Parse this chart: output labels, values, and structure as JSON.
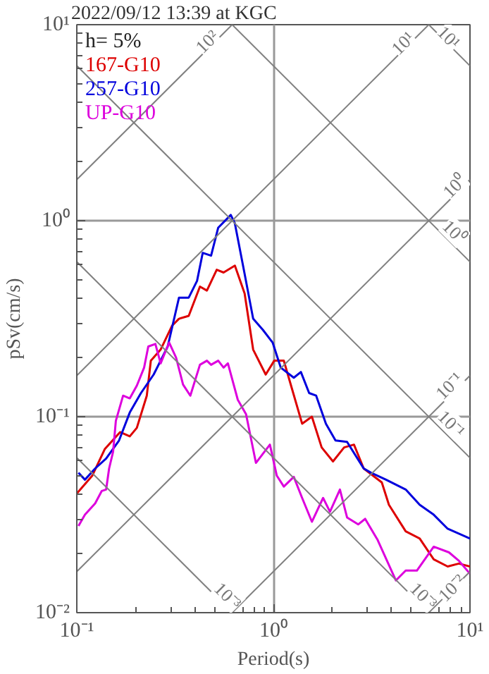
{
  "chart_data": {
    "type": "line",
    "title": "2022/09/12 13:39 at KGC",
    "xlabel": "Period(s)",
    "ylabel": "pSv(cm/s)",
    "log": "xy",
    "grid": true,
    "legend": "top left",
    "xlim": [
      0.1,
      10
    ],
    "ylim": [
      0.01,
      10
    ],
    "xticks": [
      {
        "value": 0.1,
        "label": "10⁻¹"
      },
      {
        "value": 1,
        "label": "10⁰"
      },
      {
        "value": 10,
        "label": "10¹"
      }
    ],
    "yticks": [
      {
        "value": 0.01,
        "label": "10⁻²"
      },
      {
        "value": 0.1,
        "label": "10⁻¹"
      },
      {
        "value": 1,
        "label": "10⁰"
      },
      {
        "value": 10,
        "label": "10¹"
      }
    ],
    "annotations": [
      "h= 5%",
      {
        "text": "10²",
        "x": 0.459,
        "y": 8.21
      },
      {
        "text": "10¹",
        "x": 4.55,
        "y": 8.07
      },
      {
        "text": "10¹",
        "x": 7.82,
        "y": 8.63
      },
      {
        "text": "10⁰",
        "x": 8.36,
        "y": 1.51
      },
      {
        "text": "10⁰",
        "x": 8.36,
        "y": 0.877
      },
      {
        "text": "10⁻¹",
        "x": 7.82,
        "y": 0.144
      },
      {
        "text": "10⁻¹",
        "x": 8.07,
        "y": 0.0921
      },
      {
        "text": "10⁻³",
        "x": 0.587,
        "y": 0.0122
      },
      {
        "text": "10⁻³",
        "x": 5.82,
        "y": 0.0122
      },
      {
        "text": "10⁻²",
        "x": 8.07,
        "y": 0.0134
      }
    ],
    "series": [
      {
        "name": "167-G10",
        "color": "#dd0000",
        "x": [
          0.1,
          0.12,
          0.139,
          0.166,
          0.186,
          0.202,
          0.227,
          0.238,
          0.267,
          0.305,
          0.331,
          0.371,
          0.423,
          0.459,
          0.515,
          0.558,
          0.637,
          0.714,
          0.789,
          0.914,
          1.01,
          1.13,
          1.23,
          1.4,
          1.57,
          1.76,
          2.01,
          2.29,
          2.57,
          2.88,
          3.56,
          3.87,
          4.71,
          5.55,
          6.54,
          7.7,
          8.78,
          10
        ],
        "values": [
          0.0405,
          0.0501,
          0.0685,
          0.0834,
          0.0794,
          0.0877,
          0.128,
          0.193,
          0.22,
          0.291,
          0.316,
          0.327,
          0.461,
          0.44,
          0.562,
          0.544,
          0.59,
          0.425,
          0.22,
          0.164,
          0.193,
          0.193,
          0.144,
          0.0921,
          0.1,
          0.0697,
          0.0591,
          0.0697,
          0.072,
          0.0544,
          0.0462,
          0.0355,
          0.026,
          0.0239,
          0.0187,
          0.0172,
          0.0178,
          0.0172
        ]
      },
      {
        "name": "257-G10",
        "color": "#0000dd",
        "x": [
          0.102,
          0.11,
          0.124,
          0.141,
          0.164,
          0.186,
          0.212,
          0.246,
          0.29,
          0.331,
          0.371,
          0.409,
          0.437,
          0.482,
          0.524,
          0.607,
          0.637,
          0.714,
          0.789,
          0.885,
          0.991,
          1.09,
          1.27,
          1.38,
          1.52,
          1.65,
          1.85,
          2.07,
          2.37,
          2.88,
          3.13,
          3.74,
          4.71,
          5.55,
          6.54,
          7.7,
          10
        ],
        "values": [
          0.0518,
          0.0477,
          0.0544,
          0.0611,
          0.0756,
          0.105,
          0.132,
          0.164,
          0.228,
          0.405,
          0.405,
          0.493,
          0.685,
          0.663,
          0.921,
          1.07,
          0.968,
          0.535,
          0.316,
          0.277,
          0.239,
          0.178,
          0.158,
          0.169,
          0.132,
          0.128,
          0.0921,
          0.0756,
          0.0744,
          0.0544,
          0.0518,
          0.0477,
          0.0425,
          0.0355,
          0.0316,
          0.0268,
          0.0239
        ]
      },
      {
        "name": "UP-G10",
        "color": "#dd00dd",
        "x": [
          0.102,
          0.11,
          0.124,
          0.134,
          0.141,
          0.146,
          0.153,
          0.158,
          0.172,
          0.186,
          0.202,
          0.22,
          0.231,
          0.251,
          0.267,
          0.295,
          0.32,
          0.347,
          0.378,
          0.423,
          0.459,
          0.482,
          0.524,
          0.558,
          0.587,
          0.659,
          0.726,
          0.815,
          0.96,
          1.04,
          1.13,
          1.27,
          1.4,
          1.57,
          1.79,
          1.94,
          2.18,
          2.37,
          2.7,
          2.93,
          3.39,
          4.2,
          4.71,
          5.37,
          6.54,
          7.82,
          8.78,
          10
        ],
        "values": [
          0.0277,
          0.0316,
          0.0361,
          0.0418,
          0.0425,
          0.0544,
          0.0663,
          0.0952,
          0.128,
          0.124,
          0.144,
          0.178,
          0.228,
          0.235,
          0.187,
          0.239,
          0.2,
          0.146,
          0.128,
          0.184,
          0.193,
          0.184,
          0.193,
          0.178,
          0.187,
          0.122,
          0.103,
          0.0581,
          0.072,
          0.0501,
          0.044,
          0.0493,
          0.0385,
          0.0291,
          0.0385,
          0.0327,
          0.0425,
          0.0306,
          0.0282,
          0.0301,
          0.0235,
          0.0146,
          0.0164,
          0.0164,
          0.0217,
          0.0203,
          0.0184,
          0.0158
        ]
      },
      {
        "color": "#808080",
        "x": [
          0.1,
          0.617
        ],
        "values": [
          1.62,
          10
        ]
      },
      {
        "color": "#808080",
        "x": [
          0.1,
          6.17
        ],
        "values": [
          0.162,
          10
        ]
      },
      {
        "color": "#808080",
        "x": [
          0.1,
          10
        ],
        "values": [
          0.0162,
          1.62
        ]
      },
      {
        "color": "#808080",
        "x": [
          0.617,
          10
        ],
        "values": [
          0.01,
          0.162
        ]
      },
      {
        "color": "#808080",
        "x": [
          6.17,
          10
        ],
        "values": [
          0.01,
          0.0162
        ]
      },
      {
        "color": "#808080",
        "x": [
          6.17,
          10
        ],
        "values": [
          10,
          6.17
        ]
      },
      {
        "color": "#808080",
        "x": [
          0.617,
          10
        ],
        "values": [
          10,
          0.617
        ]
      },
      {
        "color": "#808080",
        "x": [
          0.1,
          10
        ],
        "values": [
          6.17,
          0.0617
        ]
      },
      {
        "color": "#808080",
        "x": [
          0.1,
          6.17
        ],
        "values": [
          0.617,
          0.01
        ]
      },
      {
        "color": "#808080",
        "x": [
          0.1,
          0.617
        ],
        "values": [
          0.0617,
          0.01
        ]
      }
    ]
  }
}
